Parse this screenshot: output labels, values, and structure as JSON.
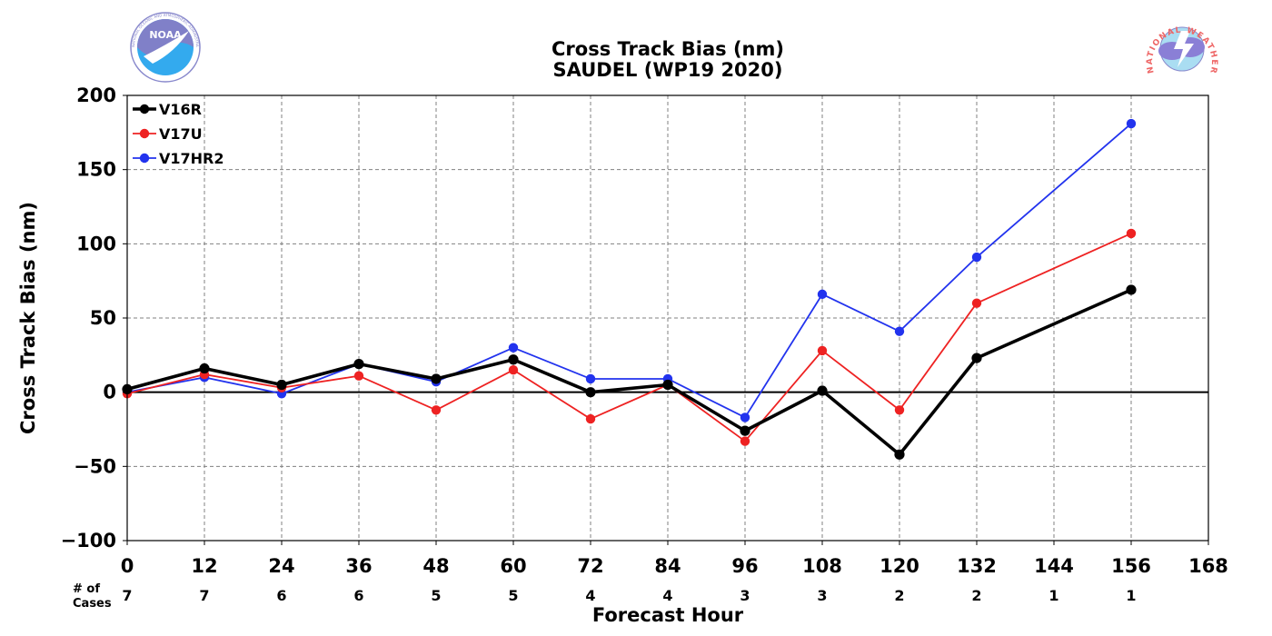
{
  "logos": {
    "left": {
      "text": "NOAA",
      "ring_text": "NATIONAL OCEANIC AND ATMOSPHERIC ADMINISTRATION · U.S. DEPARTMENT OF COMMERCE"
    },
    "right": {
      "text": "NATIONAL WEATHER SERVICE"
    }
  },
  "cases_header": [
    "# of",
    "Cases"
  ],
  "cases": [
    7,
    7,
    6,
    6,
    5,
    5,
    4,
    4,
    3,
    3,
    2,
    2,
    1,
    1
  ],
  "colors": {
    "V16R": "#000000",
    "V17U": "#ee2222",
    "V17HR2": "#2233ee",
    "grid": "#808080",
    "zero_line": "#000000"
  },
  "chart_data": {
    "type": "line",
    "title": "Cross Track Bias (nm)",
    "subtitle": "SAUDEL (WP19 2020)",
    "xlabel": "Forecast Hour",
    "ylabel": "Cross Track Bias (nm)",
    "xlim": [
      0,
      168
    ],
    "ylim": [
      -100,
      200
    ],
    "xticks": [
      0,
      12,
      24,
      36,
      48,
      60,
      72,
      84,
      96,
      108,
      120,
      132,
      144,
      156,
      168
    ],
    "yticks": [
      -100,
      -50,
      0,
      50,
      100,
      150,
      200
    ],
    "ytick_labels": [
      "−100",
      "−50",
      "0",
      "50",
      "100",
      "150",
      "200"
    ],
    "grid": true,
    "legend_position": "top-left",
    "series": [
      {
        "name": "V16R",
        "color": "#000000",
        "x": [
          0,
          12,
          24,
          36,
          48,
          60,
          72,
          84,
          96,
          108,
          120,
          132,
          156
        ],
        "y": [
          2,
          16,
          5,
          19,
          9,
          22,
          0,
          5,
          -26,
          1,
          -42,
          23,
          69
        ]
      },
      {
        "name": "V17U",
        "color": "#ee2222",
        "x": [
          0,
          12,
          24,
          36,
          48,
          60,
          72,
          84,
          96,
          108,
          120,
          132,
          156
        ],
        "y": [
          -1,
          12,
          3,
          11,
          -12,
          15,
          -18,
          5,
          -33,
          28,
          -12,
          60,
          107
        ]
      },
      {
        "name": "V17HR2",
        "color": "#2233ee",
        "x": [
          0,
          12,
          24,
          36,
          48,
          60,
          72,
          84,
          96,
          108,
          120,
          132,
          156
        ],
        "y": [
          0,
          10,
          -1,
          19,
          7,
          30,
          9,
          9,
          -17,
          66,
          41,
          91,
          181
        ]
      }
    ]
  }
}
